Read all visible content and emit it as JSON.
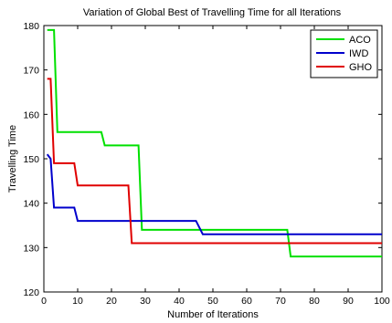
{
  "chart_data": {
    "type": "line",
    "title": "Variation of Global Best of Travelling Time for all Iterations",
    "xlabel": "Number of Iterations",
    "ylabel": "Travelling Time",
    "xlim": [
      0,
      100
    ],
    "ylim": [
      120,
      180
    ],
    "xticks": [
      "0",
      "10",
      "20",
      "30",
      "40",
      "50",
      "60",
      "70",
      "80",
      "90",
      "100"
    ],
    "yticks": [
      "120",
      "130",
      "140",
      "150",
      "160",
      "170",
      "180"
    ],
    "grid": false,
    "legend_position": "top-right",
    "series": [
      {
        "name": "ACO",
        "color": "#00e000",
        "points": [
          [
            1,
            179
          ],
          [
            3,
            179
          ],
          [
            4,
            156
          ],
          [
            17,
            156
          ],
          [
            18,
            153
          ],
          [
            28,
            153
          ],
          [
            29,
            134
          ],
          [
            72,
            134
          ],
          [
            73,
            128
          ],
          [
            100,
            128
          ]
        ]
      },
      {
        "name": "IWD",
        "color": "#0000cc",
        "points": [
          [
            1,
            151
          ],
          [
            2,
            150
          ],
          [
            3,
            139
          ],
          [
            9,
            139
          ],
          [
            10,
            136
          ],
          [
            45,
            136
          ],
          [
            47,
            133
          ],
          [
            100,
            133
          ]
        ]
      },
      {
        "name": "GHO",
        "color": "#e00000",
        "points": [
          [
            1,
            168
          ],
          [
            2,
            168
          ],
          [
            3,
            149
          ],
          [
            9,
            149
          ],
          [
            10,
            144
          ],
          [
            25,
            144
          ],
          [
            26,
            131
          ],
          [
            100,
            131
          ]
        ]
      }
    ]
  }
}
